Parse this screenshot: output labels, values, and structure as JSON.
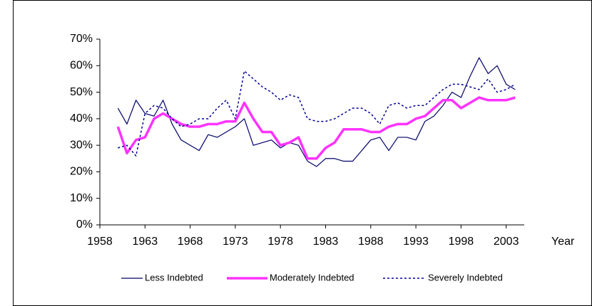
{
  "chart_data": {
    "type": "line",
    "x_label": "Year",
    "x": [
      1960,
      1961,
      1962,
      1963,
      1964,
      1965,
      1966,
      1967,
      1968,
      1969,
      1970,
      1971,
      1972,
      1973,
      1974,
      1975,
      1976,
      1977,
      1978,
      1979,
      1980,
      1981,
      1982,
      1983,
      1984,
      1985,
      1986,
      1987,
      1988,
      1989,
      1990,
      1991,
      1992,
      1993,
      1994,
      1995,
      1996,
      1997,
      1998,
      1999,
      2000,
      2001,
      2002,
      2003,
      2004
    ],
    "series": [
      {
        "name": "Less Indebted",
        "color": "#000066",
        "dash": "solid",
        "width": 1.2,
        "values": [
          44,
          38,
          47,
          42,
          41,
          47,
          38,
          32,
          30,
          28,
          34,
          33,
          35,
          37,
          40,
          30,
          31,
          32,
          29,
          31,
          30,
          24,
          22,
          25,
          25,
          24,
          24,
          28,
          32,
          33,
          28,
          33,
          33,
          32,
          39,
          41,
          45,
          50,
          48,
          56,
          63,
          57,
          60,
          53,
          51
        ]
      },
      {
        "name": "Moderately Indebted",
        "color": "#ff33ff",
        "dash": "solid",
        "width": 3.5,
        "values": [
          37,
          27,
          32,
          33,
          40,
          42,
          40,
          38,
          37,
          37,
          38,
          38,
          39,
          39,
          46,
          40,
          35,
          35,
          30,
          31,
          33,
          25,
          25,
          29,
          31,
          36,
          36,
          36,
          35,
          35,
          37,
          38,
          38,
          40,
          41,
          44,
          47,
          47,
          44,
          46,
          48,
          47,
          47,
          47,
          48
        ]
      },
      {
        "name": "Severely Indebted",
        "color": "#000099",
        "dash": "dotted",
        "width": 1.5,
        "values": [
          29,
          30,
          26,
          42,
          45,
          44,
          40,
          37,
          38,
          40,
          40,
          44,
          47,
          40,
          58,
          55,
          52,
          50,
          47,
          49,
          48,
          40,
          39,
          39,
          40,
          42,
          44,
          44,
          42,
          38,
          45,
          46,
          44,
          45,
          45,
          48,
          51,
          53,
          53,
          52,
          51,
          55,
          50,
          51,
          53
        ]
      }
    ],
    "xlim": [
      1958,
      2005
    ],
    "xticks": [
      1958,
      1963,
      1968,
      1973,
      1978,
      1983,
      1988,
      1993,
      1998,
      2003
    ],
    "ylim": [
      0,
      70
    ],
    "yticks": [
      {
        "value": 0,
        "label": "0%"
      },
      {
        "value": 10,
        "label": "10%"
      },
      {
        "value": 20,
        "label": "20%"
      },
      {
        "value": 30,
        "label": "30%"
      },
      {
        "value": 40,
        "label": "40%"
      },
      {
        "value": 50,
        "label": "50%"
      },
      {
        "value": 60,
        "label": "60%"
      },
      {
        "value": 70,
        "label": "70%"
      }
    ],
    "grid": false,
    "legend": "bottom"
  }
}
